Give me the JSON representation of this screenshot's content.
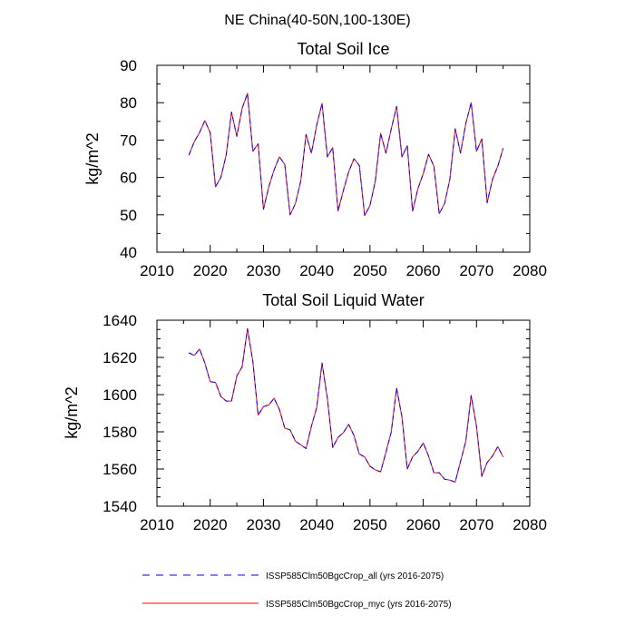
{
  "figure": {
    "suptitle": "NE China(40-50N,100-130E)"
  },
  "legend": {
    "placement": "bottom",
    "items": [
      {
        "label": "ISSP585Clm50BgcCrop_all (yrs 2016-2075)",
        "color": "#0000ff",
        "dash": "dashed"
      },
      {
        "label": "ISSP585Clm50BgcCrop_myc (yrs 2016-2075)",
        "color": "#ff0000",
        "dash": "solid"
      }
    ]
  },
  "chart_data": [
    {
      "type": "line",
      "title": "Total Soil Ice",
      "xlabel": "",
      "ylabel": "kg/m^2",
      "xlim": [
        2010,
        2080
      ],
      "ylim": [
        40,
        90
      ],
      "xticks": [
        2010,
        2020,
        2030,
        2040,
        2050,
        2060,
        2070,
        2080
      ],
      "yticks": [
        40,
        50,
        60,
        70,
        80,
        90
      ],
      "xminor": 2,
      "yminor": 2,
      "grid": false,
      "x": [
        2016,
        2017,
        2018,
        2019,
        2020,
        2021,
        2022,
        2023,
        2024,
        2025,
        2026,
        2027,
        2028,
        2029,
        2030,
        2031,
        2032,
        2033,
        2034,
        2035,
        2036,
        2037,
        2038,
        2039,
        2040,
        2041,
        2042,
        2043,
        2044,
        2045,
        2046,
        2047,
        2048,
        2049,
        2050,
        2051,
        2052,
        2053,
        2054,
        2055,
        2056,
        2057,
        2058,
        2059,
        2060,
        2061,
        2062,
        2063,
        2064,
        2065,
        2066,
        2067,
        2068,
        2069,
        2070,
        2071,
        2072,
        2073,
        2074,
        2075
      ],
      "series": [
        {
          "values": [
            66,
            69.5,
            72,
            75.2,
            72,
            57.5,
            60,
            66,
            77.5,
            71,
            78.5,
            82.5,
            67,
            69,
            51.5,
            57.5,
            62,
            65.5,
            63.5,
            50,
            53,
            59,
            71.5,
            66.5,
            74,
            79.8,
            65.5,
            68,
            51,
            56.5,
            61.5,
            65,
            63.2,
            49.8,
            52.5,
            59,
            71.8,
            66.5,
            73,
            79,
            65.5,
            68.5,
            51,
            57,
            61,
            66.2,
            63,
            50.3,
            53,
            59.5,
            73,
            66.5,
            74.5,
            80,
            67,
            70.3,
            53.2,
            59.5,
            63,
            67.8
          ]
        },
        {
          "values": [
            66,
            69.5,
            72,
            75.2,
            72,
            57.5,
            60,
            66,
            77.5,
            71,
            78.5,
            82.5,
            67,
            69,
            51.5,
            57.5,
            62,
            65.5,
            63.5,
            50,
            53,
            59,
            71.5,
            66.5,
            74,
            79.8,
            65.5,
            68,
            51,
            56.5,
            61.5,
            65,
            63.2,
            49.8,
            52.5,
            59,
            71.8,
            66.5,
            73,
            79,
            65.5,
            68.5,
            51,
            57,
            61,
            66.2,
            63,
            50.3,
            53,
            59.5,
            73,
            66.5,
            74.5,
            80,
            67,
            70.3,
            53.2,
            59.5,
            63,
            67.8
          ]
        }
      ]
    },
    {
      "type": "line",
      "title": "Total Soil Liquid Water",
      "xlabel": "",
      "ylabel": "kg/m^2",
      "xlim": [
        2010,
        2080
      ],
      "ylim": [
        1540,
        1640
      ],
      "xticks": [
        2010,
        2020,
        2030,
        2040,
        2050,
        2060,
        2070,
        2080
      ],
      "yticks": [
        1540,
        1560,
        1580,
        1600,
        1620,
        1640
      ],
      "xminor": 2,
      "yminor": 4,
      "grid": false,
      "x": [
        2016,
        2017,
        2018,
        2019,
        2020,
        2021,
        2022,
        2023,
        2024,
        2025,
        2026,
        2027,
        2028,
        2029,
        2030,
        2031,
        2032,
        2033,
        2034,
        2035,
        2036,
        2037,
        2038,
        2039,
        2040,
        2041,
        2042,
        2043,
        2044,
        2045,
        2046,
        2047,
        2048,
        2049,
        2050,
        2051,
        2052,
        2053,
        2054,
        2055,
        2056,
        2057,
        2058,
        2059,
        2060,
        2061,
        2062,
        2063,
        2064,
        2065,
        2066,
        2067,
        2068,
        2069,
        2070,
        2071,
        2072,
        2073,
        2074,
        2075
      ],
      "series": [
        {
          "values": [
            1622.5,
            1621,
            1624.5,
            1617,
            1607,
            1606.5,
            1599,
            1596.5,
            1596.5,
            1610,
            1615,
            1635.5,
            1618,
            1589,
            1593.5,
            1594.5,
            1598,
            1592,
            1582,
            1581,
            1575,
            1573,
            1571,
            1583,
            1593,
            1617,
            1598,
            1571.5,
            1577,
            1579.5,
            1584,
            1578,
            1568,
            1566.5,
            1561.5,
            1559.5,
            1558.5,
            1569,
            1580,
            1603.5,
            1588,
            1560,
            1566.5,
            1569.5,
            1574,
            1567,
            1558,
            1558,
            1554.5,
            1554,
            1553,
            1564,
            1575,
            1599.5,
            1583,
            1556,
            1563.5,
            1567,
            1572,
            1566.5
          ]
        },
        {
          "values": [
            1622.5,
            1621,
            1624.5,
            1617,
            1607,
            1606.5,
            1599,
            1596.5,
            1596.5,
            1610,
            1615,
            1635.5,
            1618,
            1589,
            1593.5,
            1594.5,
            1598,
            1592,
            1582,
            1581,
            1575,
            1573,
            1571,
            1583,
            1593,
            1617,
            1598,
            1571.5,
            1577,
            1579.5,
            1584,
            1578,
            1568,
            1566.5,
            1561.5,
            1559.5,
            1558.5,
            1569,
            1580,
            1603.5,
            1588,
            1560,
            1566.5,
            1569.5,
            1574,
            1567,
            1558,
            1558,
            1554.5,
            1554,
            1553,
            1564,
            1575,
            1599.5,
            1583,
            1556,
            1563.5,
            1567,
            1572,
            1566.5
          ]
        }
      ]
    }
  ]
}
